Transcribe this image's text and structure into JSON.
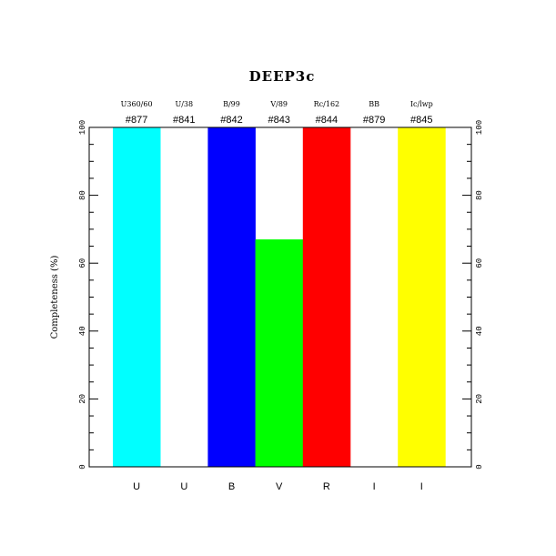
{
  "chart_data": {
    "type": "bar",
    "title": "DEEP3c",
    "ylabel": "Completeness (%)",
    "xlabel": "",
    "ylim": [
      0,
      100
    ],
    "yticks": [
      0,
      20,
      40,
      60,
      80,
      100
    ],
    "grid": false,
    "legend": "none",
    "categories": [
      {
        "band": "U",
        "filter": "U360/60",
        "id": "#877",
        "value": 100,
        "color": "#00ffff"
      },
      {
        "band": "U",
        "filter": "U/38",
        "id": "#841",
        "value": 0,
        "color": "#ffffff"
      },
      {
        "band": "B",
        "filter": "B/99",
        "id": "#842",
        "value": 100,
        "color": "#0000ff"
      },
      {
        "band": "V",
        "filter": "V/89",
        "id": "#843",
        "value": 67,
        "color": "#00ff00"
      },
      {
        "band": "R",
        "filter": "Rc/162",
        "id": "#844",
        "value": 100,
        "color": "#ff0000"
      },
      {
        "band": "I",
        "filter": "BB",
        "id": "#879",
        "value": 0,
        "color": "#ffffff"
      },
      {
        "band": "I",
        "filter": "Ic/lwp",
        "id": "#845",
        "value": 100,
        "color": "#ffff00"
      }
    ]
  }
}
